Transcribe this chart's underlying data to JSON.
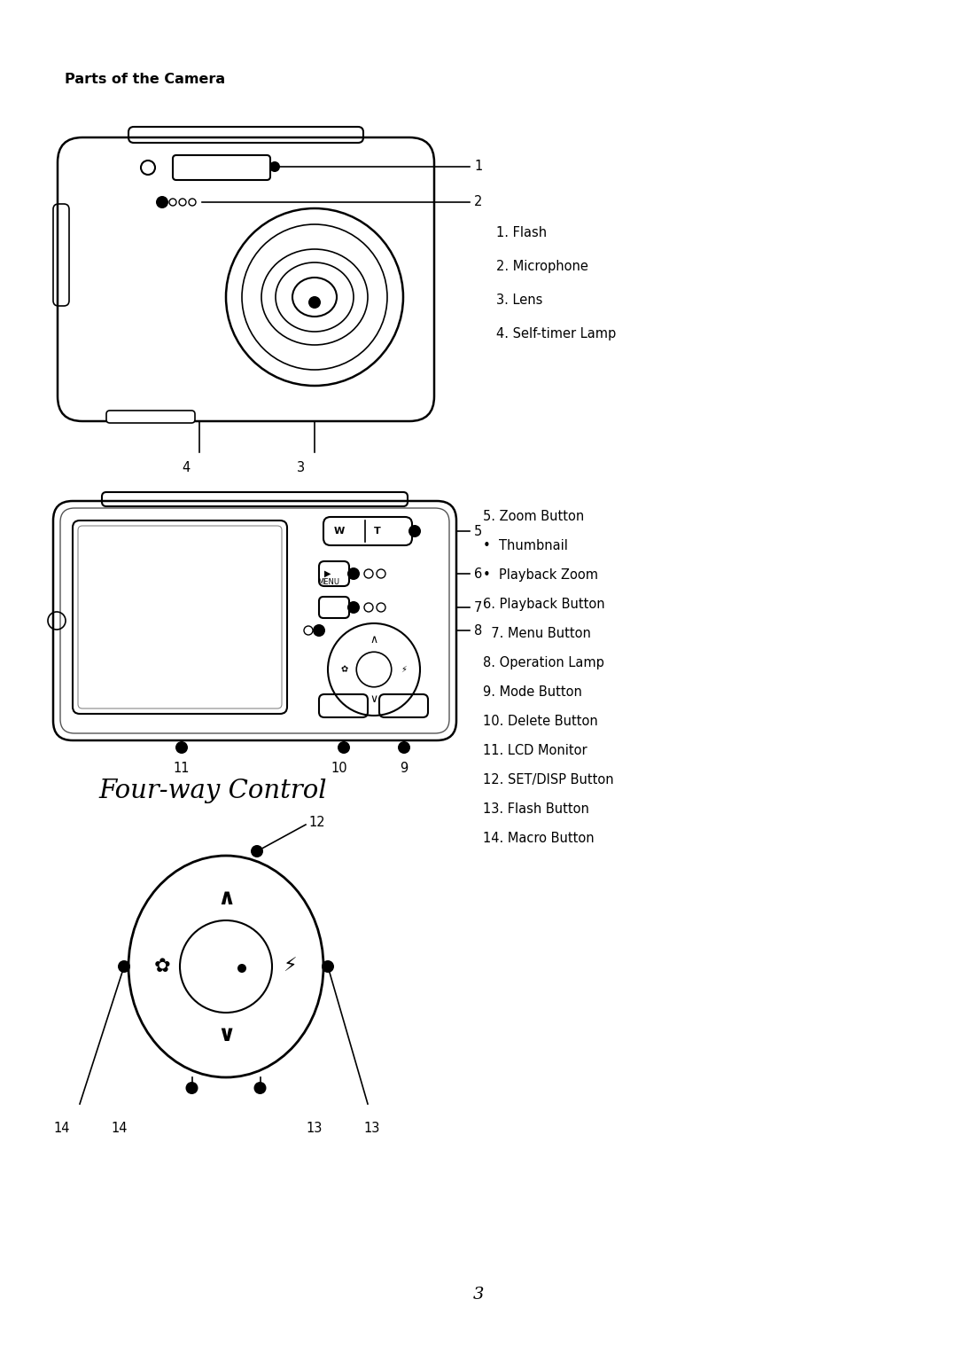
{
  "bg_color": "#ffffff",
  "text_color": "#000000",
  "title": "Parts of the Camera",
  "title_fontsize": 11.5,
  "front_list": [
    "1. Flash",
    "2. Microphone",
    "3. Lens",
    "4. Self-timer Lamp"
  ],
  "back_list": [
    "5. Zoom Button",
    "•  Thumbnail",
    "•  Playback Zoom",
    "6. Playback Button",
    "  7. Menu Button",
    "8. Operation Lamp",
    "9. Mode Button",
    "10. Delete Button",
    "11. LCD Monitor",
    "12. SET/DISP Button",
    "13. Flash Button",
    "14. Macro Button"
  ],
  "fourway_title": "Four-way Control",
  "fourway_title_fontsize": 21,
  "page_number": "3",
  "label_fontsize": 10.5,
  "list_fontsize": 10.5
}
